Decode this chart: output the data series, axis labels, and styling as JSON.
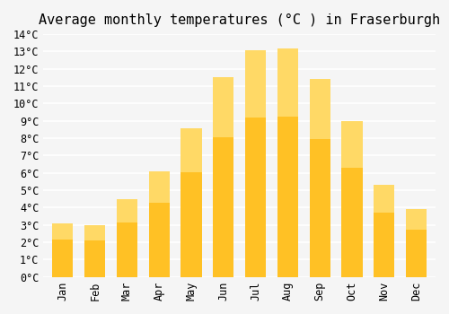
{
  "title": "Average monthly temperatures (°C ) in Fraserburgh",
  "months": [
    "Jan",
    "Feb",
    "Mar",
    "Apr",
    "May",
    "Jun",
    "Jul",
    "Aug",
    "Sep",
    "Oct",
    "Nov",
    "Dec"
  ],
  "values": [
    3.1,
    3.0,
    4.5,
    6.1,
    8.6,
    11.5,
    13.1,
    13.2,
    11.4,
    9.0,
    5.3,
    3.9
  ],
  "bar_color_bottom": "#FFA500",
  "bar_color_top": "#FFD966",
  "bar_color": "#FFC125",
  "ylim": [
    0,
    14
  ],
  "yticks": [
    0,
    1,
    2,
    3,
    4,
    5,
    6,
    7,
    8,
    9,
    10,
    11,
    12,
    13,
    14
  ],
  "ytick_labels": [
    "0°C",
    "1°C",
    "2°C",
    "3°C",
    "4°C",
    "5°C",
    "6°C",
    "7°C",
    "8°C",
    "9°C",
    "10°C",
    "11°C",
    "12°C",
    "13°C",
    "14°C"
  ],
  "background_color": "#f5f5f5",
  "grid_color": "#ffffff",
  "title_fontsize": 11,
  "tick_fontsize": 8.5,
  "font_family": "monospace"
}
